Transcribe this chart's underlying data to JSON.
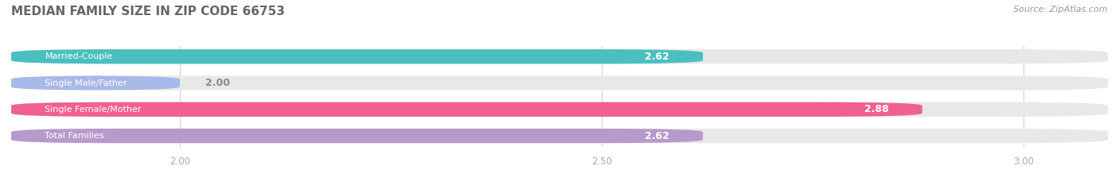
{
  "title": "MEDIAN FAMILY SIZE IN ZIP CODE 66753",
  "source": "Source: ZipAtlas.com",
  "categories": [
    "Married-Couple",
    "Single Male/Father",
    "Single Female/Mother",
    "Total Families"
  ],
  "values": [
    2.62,
    2.0,
    2.88,
    2.62
  ],
  "bar_colors": [
    "#4bbfbf",
    "#a8b8e8",
    "#f06090",
    "#b899cc"
  ],
  "bar_bg_color": "#e8e8e8",
  "xlim": [
    1.8,
    3.1
  ],
  "xticks": [
    2.0,
    2.5,
    3.0
  ],
  "title_color": "#666666",
  "source_color": "#999999",
  "fig_bg_color": "#ffffff"
}
